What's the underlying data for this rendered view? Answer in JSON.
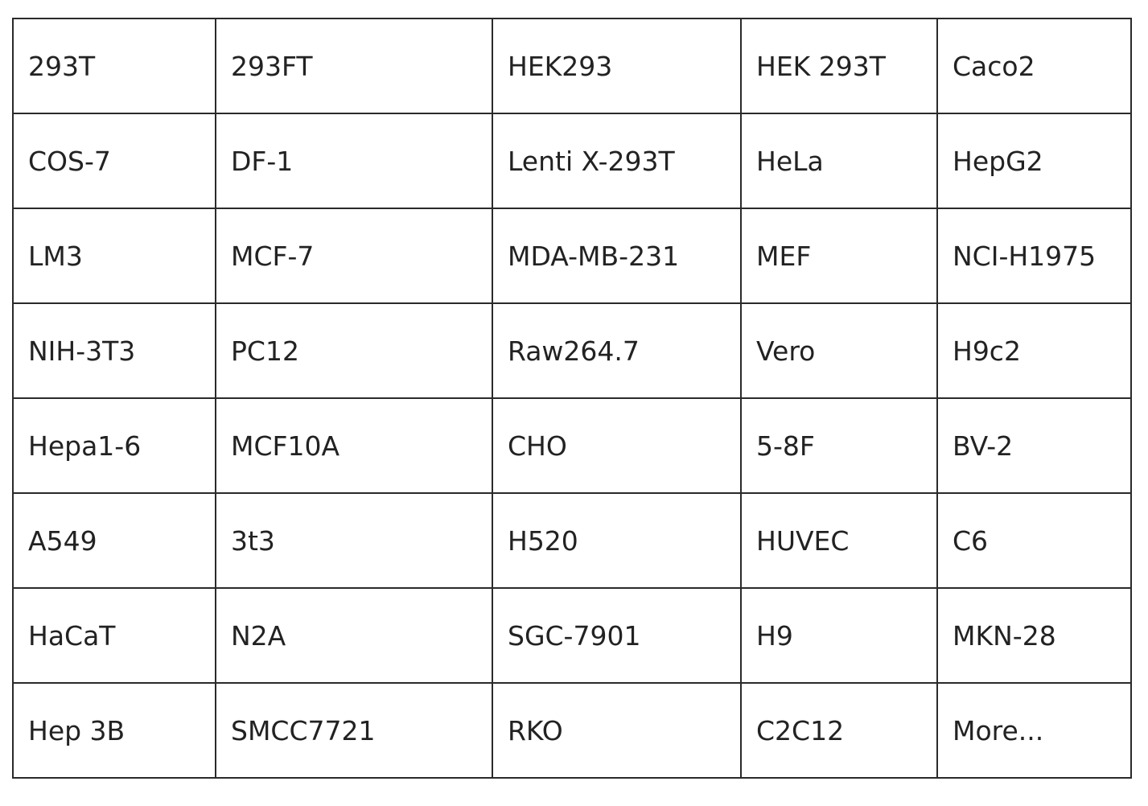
{
  "table": {
    "rows": [
      [
        "293T",
        "293FT",
        "HEK293",
        "HEK 293T",
        "Caco2"
      ],
      [
        "COS-7",
        "DF-1",
        "Lenti X-293T",
        "HeLa",
        "HepG2"
      ],
      [
        "LM3",
        "MCF-7",
        "MDA-MB-231",
        "MEF",
        "NCI-H1975"
      ],
      [
        "NIH-3T3",
        "PC12",
        "Raw264.7",
        "Vero",
        "H9c2"
      ],
      [
        "Hepa1-6",
        "MCF10A",
        "CHO",
        "5-8F",
        "BV-2"
      ],
      [
        "A549",
        "3t3",
        "H520",
        "HUVEC",
        "C6"
      ],
      [
        "HaCaT",
        "N2A",
        "SGC-7901",
        "H9",
        "MKN-28"
      ],
      [
        "Hep 3B",
        "SMCC7721",
        "RKO",
        "C2C12",
        "More..."
      ]
    ]
  }
}
